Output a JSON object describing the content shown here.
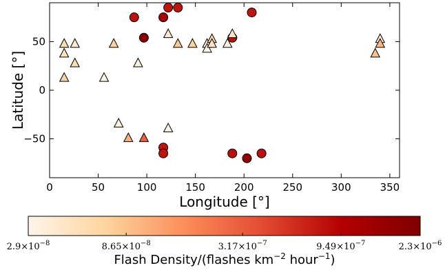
{
  "chart_data": {
    "type": "scatter",
    "xlabel": "Longitude [°]",
    "ylabel": "Latitude [°]",
    "xlim": [
      0,
      360
    ],
    "ylim": [
      -90,
      90
    ],
    "xticks": [
      0,
      50,
      100,
      150,
      200,
      250,
      300,
      350
    ],
    "yticks": [
      -50,
      0,
      50
    ],
    "grid": false,
    "colorbar": {
      "label_prefix": "Flash Density/(flashes km",
      "label_exp1": "−2",
      "label_mid": " hour",
      "label_exp2": "−1",
      "label_suffix": ")",
      "range": [
        2.9e-08,
        2.3e-06
      ],
      "scale": "log",
      "ticks": [
        {
          "value": 2.9e-08,
          "mantissa": "2.9",
          "exponent": "−8"
        },
        {
          "value": 8.65e-08,
          "mantissa": "8.65",
          "exponent": "−8"
        },
        {
          "value": 3.17e-07,
          "mantissa": "3.17",
          "exponent": "−7"
        },
        {
          "value": 9.49e-07,
          "mantissa": "9.49",
          "exponent": "−7"
        },
        {
          "value": 2.3e-06,
          "mantissa": "2.3",
          "exponent": "−6"
        }
      ],
      "colors": [
        "#fff5eb",
        "#fdd49e",
        "#fc8d59",
        "#e34a33",
        "#b30000",
        "#7f0000"
      ]
    },
    "series": [
      {
        "marker": "circle",
        "points": [
          {
            "x": 87,
            "y": 75,
            "c": 8e-07
          },
          {
            "x": 97,
            "y": 54,
            "c": 1.9e-06
          },
          {
            "x": 117,
            "y": 75,
            "c": 1.2e-06
          },
          {
            "x": 122,
            "y": 85,
            "c": 7.5e-07
          },
          {
            "x": 132,
            "y": 85,
            "c": 7.5e-07
          },
          {
            "x": 208,
            "y": 80,
            "c": 7.5e-07
          },
          {
            "x": 188,
            "y": 54,
            "c": 8e-07
          },
          {
            "x": 117,
            "y": -59,
            "c": 7.5e-07
          },
          {
            "x": 117,
            "y": -65,
            "c": 7.5e-07
          },
          {
            "x": 188,
            "y": -65,
            "c": 8e-07
          },
          {
            "x": 203,
            "y": -70,
            "c": 1.5e-06
          },
          {
            "x": 218,
            "y": -65,
            "c": 8e-07
          }
        ]
      },
      {
        "marker": "triangle",
        "points": [
          {
            "x": 15,
            "y": 48,
            "c": 5.5e-08
          },
          {
            "x": 26,
            "y": 48,
            "c": 4e-08
          },
          {
            "x": 15,
            "y": 38,
            "c": 5e-08
          },
          {
            "x": 26,
            "y": 28,
            "c": 5.5e-08
          },
          {
            "x": 15,
            "y": 13,
            "c": 7e-08
          },
          {
            "x": 56,
            "y": 13,
            "c": 3.2e-08
          },
          {
            "x": 66,
            "y": 48,
            "c": 7e-08
          },
          {
            "x": 91,
            "y": 28,
            "c": 3.5e-08
          },
          {
            "x": 122,
            "y": 58,
            "c": 4e-08
          },
          {
            "x": 132,
            "y": 48,
            "c": 8e-08
          },
          {
            "x": 147,
            "y": 48,
            "c": 7e-08
          },
          {
            "x": 162,
            "y": 48,
            "c": 3.6e-08
          },
          {
            "x": 162,
            "y": 43,
            "c": 3e-08
          },
          {
            "x": 167,
            "y": 53,
            "c": 6e-08
          },
          {
            "x": 167,
            "y": 48,
            "c": 4.5e-08
          },
          {
            "x": 183,
            "y": 48,
            "c": 3.5e-08
          },
          {
            "x": 188,
            "y": 58,
            "c": 4.5e-08
          },
          {
            "x": 71,
            "y": -34,
            "c": 3.5e-08
          },
          {
            "x": 122,
            "y": -39,
            "c": 3.2e-08
          },
          {
            "x": 81,
            "y": -49,
            "c": 1.1e-07
          },
          {
            "x": 97,
            "y": -49,
            "c": 3e-07
          },
          {
            "x": 335,
            "y": 38,
            "c": 9e-08
          },
          {
            "x": 340,
            "y": 53,
            "c": 3.8e-08
          },
          {
            "x": 340,
            "y": 48,
            "c": 1e-07
          }
        ]
      }
    ]
  }
}
